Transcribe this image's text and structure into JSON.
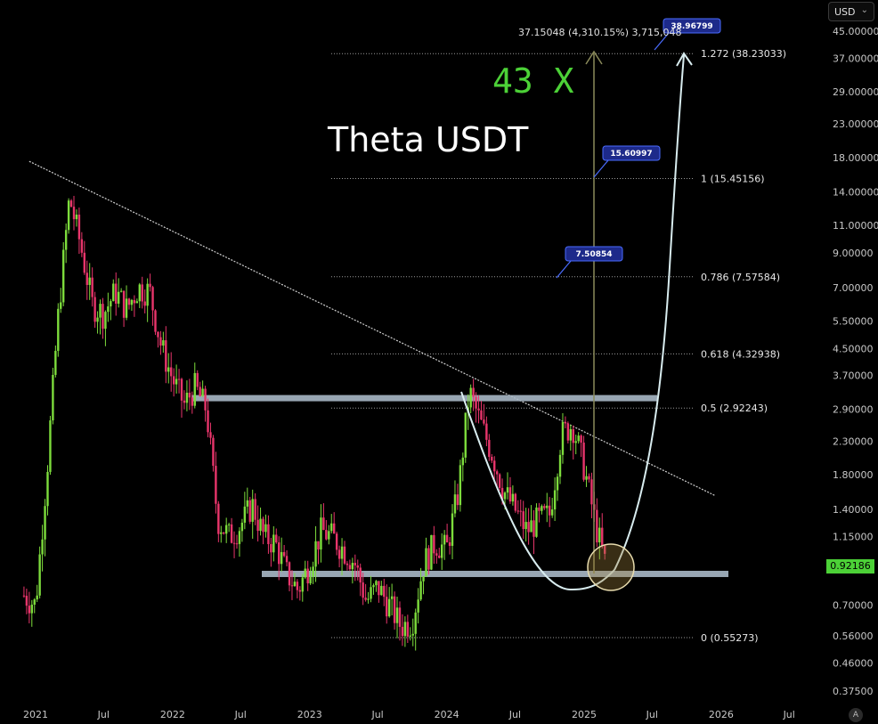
{
  "chart_data": {
    "type": "candlestick",
    "title": "Theta USDT",
    "multiplier_label": "43 X",
    "y_scale": "log",
    "ylim": [
      0.34,
      50
    ],
    "currency": "USD",
    "current_price": "0.92186",
    "x_ticks": [
      "2021",
      "Jul",
      "2022",
      "Jul",
      "2023",
      "Jul",
      "2024",
      "Jul",
      "2025",
      "Jul",
      "2026",
      "Jul"
    ],
    "y_ticks": [
      "45.00000",
      "37.00000",
      "29.00000",
      "23.00000",
      "18.00000",
      "14.00000",
      "11.00000",
      "9.00000",
      "7.00000",
      "5.50000",
      "4.50000",
      "3.70000",
      "2.90000",
      "2.30000",
      "1.80000",
      "1.40000",
      "1.15000",
      "0.70000",
      "0.56000",
      "0.46000",
      "0.37500"
    ],
    "y_tick_values": [
      45,
      37,
      29,
      23,
      18,
      14,
      11,
      9,
      7,
      5.5,
      4.5,
      3.7,
      2.9,
      2.3,
      1.8,
      1.4,
      1.15,
      0.7,
      0.56,
      0.46,
      0.375
    ],
    "fib_levels": [
      {
        "label": "1.272 (38.23033)",
        "value": 38.23033
      },
      {
        "label": "1 (15.45156)",
        "value": 15.45156
      },
      {
        "label": "0.786 (7.57584)",
        "value": 7.57584
      },
      {
        "label": "0.618 (4.32938)",
        "value": 4.32938
      },
      {
        "label": "0.5 (2.92243)",
        "value": 2.92243
      },
      {
        "label": "0 (0.55273)",
        "value": 0.55273
      }
    ],
    "callouts": [
      {
        "label": "38.96799",
        "value": 38.96799
      },
      {
        "label": "15.60997",
        "value": 15.60997
      },
      {
        "label": "7.50854",
        "value": 7.50854
      }
    ],
    "measure_label": "37.15048 (4,310.15%) 3,715,048",
    "resistance_zone": 3.15,
    "support_zone": 0.88,
    "trendline": [
      {
        "date": "2020-12-15",
        "value": 17.5
      },
      {
        "date": "2025-12-15",
        "value": 1.55
      }
    ],
    "ohlc_weekly_close_path": [
      {
        "date": "2020-12-01",
        "value": 0.75
      },
      {
        "date": "2021-01-01",
        "value": 0.7
      },
      {
        "date": "2021-02-01",
        "value": 1.9
      },
      {
        "date": "2021-03-01",
        "value": 5.5
      },
      {
        "date": "2021-04-01",
        "value": 13.5
      },
      {
        "date": "2021-05-01",
        "value": 9.5
      },
      {
        "date": "2021-06-01",
        "value": 6.2
      },
      {
        "date": "2021-07-01",
        "value": 5.8
      },
      {
        "date": "2021-08-01",
        "value": 6.8
      },
      {
        "date": "2021-09-01",
        "value": 6.0
      },
      {
        "date": "2021-10-01",
        "value": 7.0
      },
      {
        "date": "2021-11-01",
        "value": 6.8
      },
      {
        "date": "2021-12-01",
        "value": 4.6
      },
      {
        "date": "2022-01-01",
        "value": 3.6
      },
      {
        "date": "2022-02-01",
        "value": 3.0
      },
      {
        "date": "2022-03-01",
        "value": 3.4
      },
      {
        "date": "2022-04-01",
        "value": 2.9
      },
      {
        "date": "2022-05-01",
        "value": 1.3
      },
      {
        "date": "2022-06-01",
        "value": 1.15
      },
      {
        "date": "2022-07-01",
        "value": 1.25
      },
      {
        "date": "2022-08-01",
        "value": 1.45
      },
      {
        "date": "2022-09-01",
        "value": 1.15
      },
      {
        "date": "2022-10-01",
        "value": 1.1
      },
      {
        "date": "2022-11-01",
        "value": 0.88
      },
      {
        "date": "2022-12-01",
        "value": 0.78
      },
      {
        "date": "2023-01-01",
        "value": 0.95
      },
      {
        "date": "2023-02-01",
        "value": 1.2
      },
      {
        "date": "2023-03-01",
        "value": 1.15
      },
      {
        "date": "2023-04-01",
        "value": 1.05
      },
      {
        "date": "2023-05-01",
        "value": 0.95
      },
      {
        "date": "2023-06-01",
        "value": 0.72
      },
      {
        "date": "2023-07-01",
        "value": 0.8
      },
      {
        "date": "2023-08-01",
        "value": 0.7
      },
      {
        "date": "2023-09-01",
        "value": 0.6
      },
      {
        "date": "2023-10-01",
        "value": 0.62
      },
      {
        "date": "2023-11-01",
        "value": 0.95
      },
      {
        "date": "2023-12-01",
        "value": 1.1
      },
      {
        "date": "2024-01-01",
        "value": 1.05
      },
      {
        "date": "2024-02-01",
        "value": 1.6
      },
      {
        "date": "2024-03-01",
        "value": 3.3
      },
      {
        "date": "2024-04-01",
        "value": 2.6
      },
      {
        "date": "2024-05-01",
        "value": 2.1
      },
      {
        "date": "2024-06-01",
        "value": 1.6
      },
      {
        "date": "2024-07-01",
        "value": 1.4
      },
      {
        "date": "2024-08-01",
        "value": 1.2
      },
      {
        "date": "2024-09-01",
        "value": 1.3
      },
      {
        "date": "2024-10-01",
        "value": 1.35
      },
      {
        "date": "2024-11-01",
        "value": 2.4
      },
      {
        "date": "2024-12-01",
        "value": 2.6
      },
      {
        "date": "2025-01-01",
        "value": 1.9
      },
      {
        "date": "2025-02-01",
        "value": 1.25
      },
      {
        "date": "2025-03-01",
        "value": 0.92
      }
    ]
  }
}
